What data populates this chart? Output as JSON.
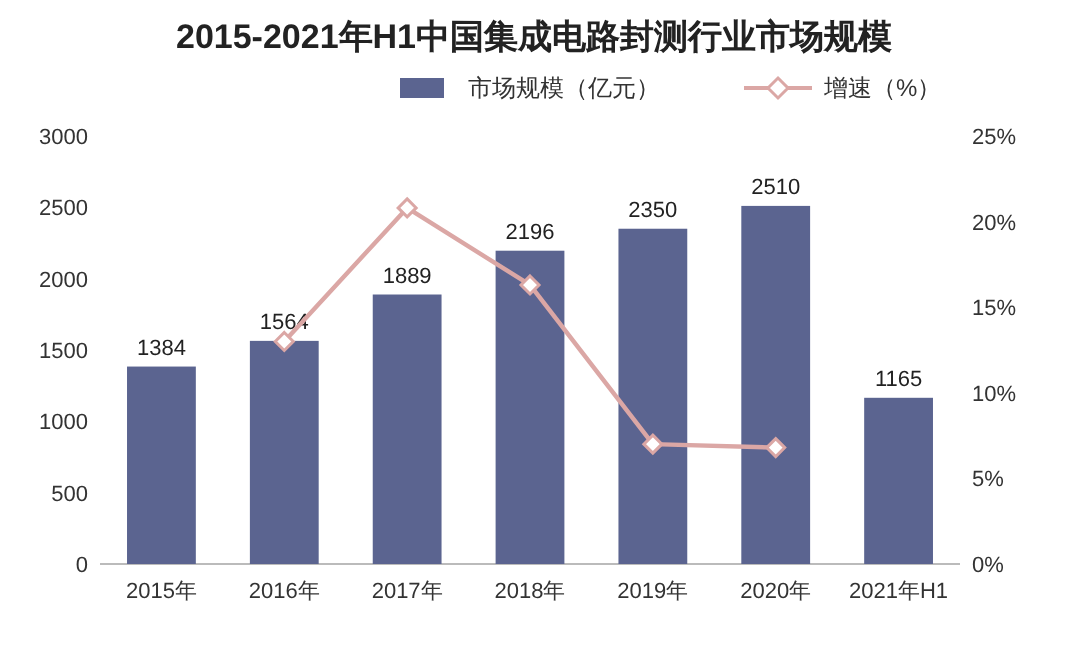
{
  "chart_data": {
    "type": "bar",
    "title": "2015-2021年H1中国集成电路封测行业市场规模",
    "categories": [
      "2015年",
      "2016年",
      "2017年",
      "2018年",
      "2019年",
      "2020年",
      "2021年H1"
    ],
    "series": [
      {
        "name": "市场规模（亿元）",
        "color": "#5b6490",
        "values": [
          1384,
          1564,
          1889,
          2196,
          2350,
          2510,
          1165
        ],
        "value_labels": [
          "1384",
          "1564",
          "1889",
          "2196",
          "2350",
          "2510",
          "1165"
        ]
      },
      {
        "name": "增速（%）",
        "type": "line",
        "axis": "y2",
        "color": "#dba7a5",
        "marker": "diamond",
        "values": [
          null,
          13.0,
          20.8,
          16.3,
          7.0,
          6.8,
          null
        ]
      }
    ],
    "ylim": [
      0,
      3000
    ],
    "yticks": [
      0,
      500,
      1000,
      1500,
      2000,
      2500,
      3000
    ],
    "y2lim": [
      0,
      25
    ],
    "y2ticks": [
      {
        "value": 0,
        "label": "0%"
      },
      {
        "value": 5,
        "label": "5%"
      },
      {
        "value": 10,
        "label": "10%"
      },
      {
        "value": 15,
        "label": "15%"
      },
      {
        "value": 20,
        "label": "20%"
      },
      {
        "value": 25,
        "label": "25%"
      }
    ],
    "legend": "top",
    "grid": false
  }
}
